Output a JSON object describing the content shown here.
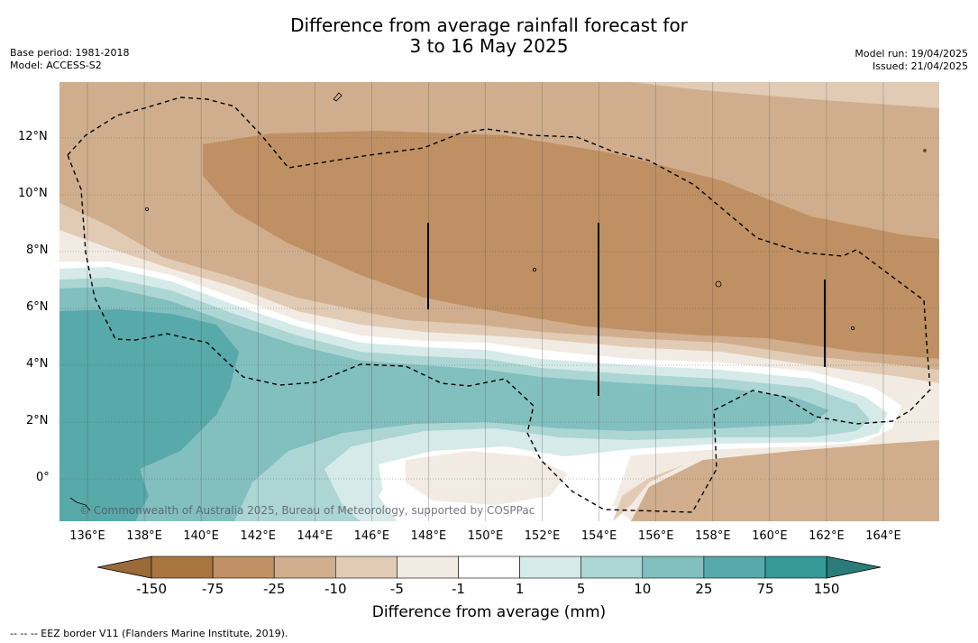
{
  "title": {
    "line1": "Difference from average rainfall forecast for",
    "line2": "3 to 16 May 2025"
  },
  "meta": {
    "base_period": "Base period: 1981-2018",
    "model": "Model: ACCESS-S2",
    "model_run": "Model run: 19/04/2025",
    "issued": "Issued: 21/04/2025"
  },
  "map": {
    "lat_labels": [
      "12°N",
      "10°N",
      "8°N",
      "6°N",
      "4°N",
      "2°N",
      "0°"
    ],
    "lon_labels": [
      "136°E",
      "138°E",
      "140°E",
      "142°E",
      "144°E",
      "146°E",
      "148°E",
      "150°E",
      "152°E",
      "154°E",
      "156°E",
      "158°E",
      "160°E",
      "162°E",
      "164°E"
    ],
    "copyright": "© Commonwealth of Australia 2025, Bureau of Meteorology, supported by COSPPac"
  },
  "colorbar": {
    "title": "Difference from average (mm)",
    "ticks": [
      "-150",
      "-75",
      "-25",
      "-10",
      "-5",
      "-1",
      "1",
      "5",
      "10",
      "25",
      "75",
      "150"
    ],
    "colors": [
      "#a87540",
      "#bf9063",
      "#d0ae8d",
      "#e2cbb5",
      "#f2ebe3",
      "#ffffff",
      "#d6ebe9",
      "#acd6d4",
      "#82bfbf",
      "#58a9a9",
      "#379996",
      "#2a7c7a"
    ]
  },
  "footnote": "--  --  -- EEZ border V11 (Flanders Marine Institute, 2019)."
}
